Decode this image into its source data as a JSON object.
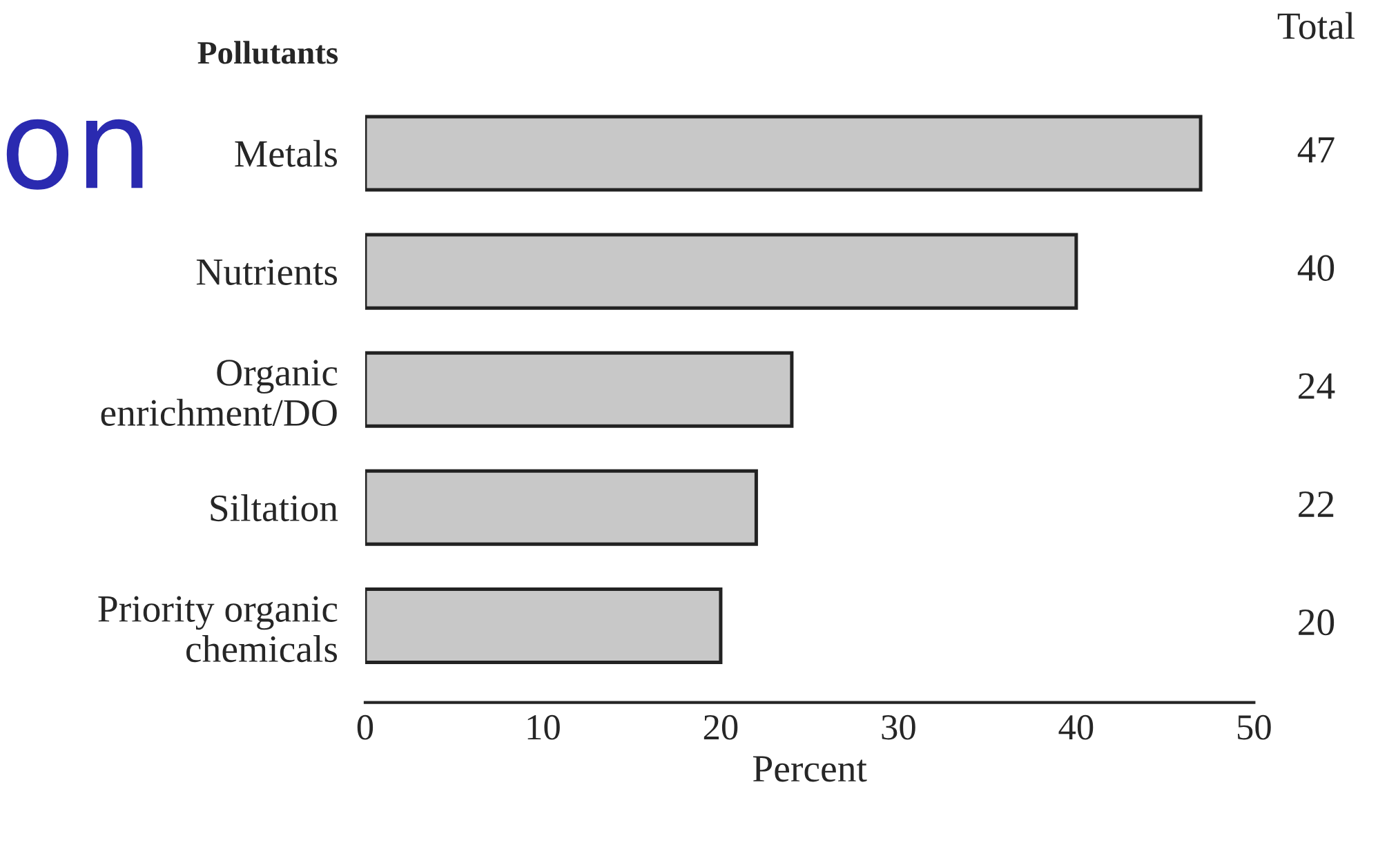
{
  "chart_data": {
    "type": "bar",
    "orientation": "horizontal",
    "ylabel": "Pollutants",
    "categories": [
      "Metals",
      "Nutrients",
      "Organic\nenrichment/DO",
      "Siltation",
      "Priority organic\nchemicals"
    ],
    "values": [
      47,
      40,
      24,
      22,
      20
    ],
    "color": "#c8c8c8",
    "data_labels": true,
    "xlabel": "Percent",
    "xlim": [
      0,
      50
    ],
    "xticks": [
      0,
      10,
      20,
      30,
      40,
      50
    ],
    "grid": false,
    "annotations": [
      "Total",
      "on"
    ]
  }
}
